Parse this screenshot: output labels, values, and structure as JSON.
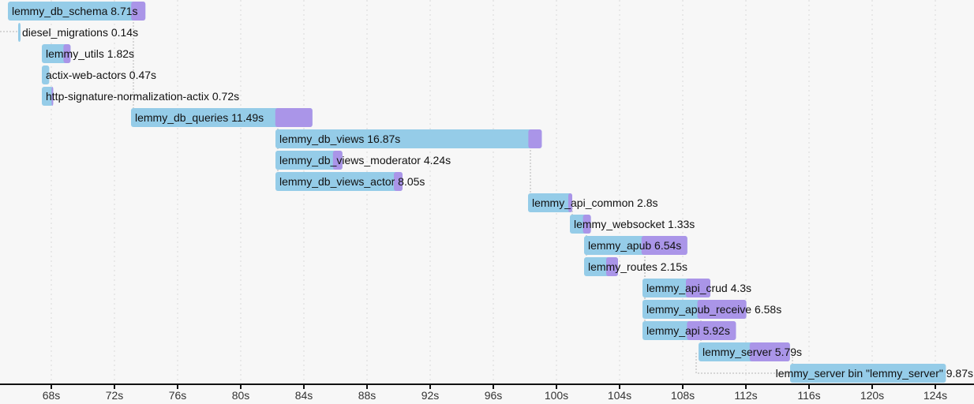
{
  "chart_data": {
    "type": "gantt",
    "title": "",
    "xlabel": "",
    "xlim": [
      64.75,
      126.45
    ],
    "x_ticks": [
      "68s",
      "72s",
      "76s",
      "80s",
      "84s",
      "88s",
      "92s",
      "96s",
      "100s",
      "104s",
      "108s",
      "112s",
      "116s",
      "120s",
      "124s"
    ],
    "x_tick_values": [
      68,
      72,
      76,
      80,
      84,
      88,
      92,
      96,
      100,
      104,
      108,
      112,
      116,
      120,
      124
    ],
    "colors": {
      "frontend": "#95cce8",
      "codegen": "#aa95e8",
      "background": "#f7f7f7"
    },
    "units": [
      {
        "label": "lemmy_db_schema 8.71s",
        "start": 65.25,
        "duration": 8.71,
        "codegen": 0.9
      },
      {
        "label": "diesel_migrations 0.14s",
        "start": 65.9,
        "duration": 0.14,
        "codegen": 0
      },
      {
        "label": "lemmy_utils 1.82s",
        "start": 67.4,
        "duration": 1.82,
        "codegen": 0.45
      },
      {
        "label": "actix-web-actors 0.47s",
        "start": 67.4,
        "duration": 0.47,
        "codegen": 0
      },
      {
        "label": "http-signature-normalization-actix 0.72s",
        "start": 67.4,
        "duration": 0.72,
        "codegen": 0.1
      },
      {
        "label": "lemmy_db_queries 11.49s",
        "start": 73.05,
        "duration": 11.49,
        "codegen": 2.35
      },
      {
        "label": "lemmy_db_views 16.87s",
        "start": 82.2,
        "duration": 16.87,
        "codegen": 0.85
      },
      {
        "label": "lemmy_db_views_moderator 4.24s",
        "start": 82.2,
        "duration": 4.24,
        "codegen": 0.6
      },
      {
        "label": "lemmy_db_views_actor 8.05s",
        "start": 82.2,
        "duration": 8.05,
        "codegen": 0.55
      },
      {
        "label": "lemmy_api_common 2.8s",
        "start": 98.2,
        "duration": 2.8,
        "codegen": 0.25
      },
      {
        "label": "lemmy_websocket 1.33s",
        "start": 100.85,
        "duration": 1.33,
        "codegen": 0.5
      },
      {
        "label": "lemmy_apub 6.54s",
        "start": 101.75,
        "duration": 6.54,
        "codegen": 2.9
      },
      {
        "label": "lemmy_routes 2.15s",
        "start": 101.75,
        "duration": 2.15,
        "codegen": 0.75
      },
      {
        "label": "lemmy_api_crud 4.3s",
        "start": 105.45,
        "duration": 4.3,
        "codegen": 1.55
      },
      {
        "label": "lemmy_apub_receive 6.58s",
        "start": 105.45,
        "duration": 6.58,
        "codegen": 3.1
      },
      {
        "label": "lemmy_api 5.92s",
        "start": 105.45,
        "duration": 5.92,
        "codegen": 3.1
      },
      {
        "label": "lemmy_server 5.79s",
        "start": 109.0,
        "duration": 5.79,
        "codegen": 2.55
      },
      {
        "label": "lemmy_server bin \"lemmy_server\" 9.87s",
        "start": 114.8,
        "duration": 9.87,
        "codegen": 0
      }
    ],
    "dependencies": [
      [
        0,
        5
      ],
      [
        5,
        6
      ],
      [
        5,
        7
      ],
      [
        5,
        8
      ],
      [
        6,
        9
      ],
      [
        9,
        10
      ],
      [
        10,
        11
      ],
      [
        10,
        12
      ],
      [
        11,
        13
      ],
      [
        11,
        14
      ],
      [
        11,
        15
      ],
      [
        14,
        16
      ],
      [
        16,
        17
      ]
    ]
  }
}
